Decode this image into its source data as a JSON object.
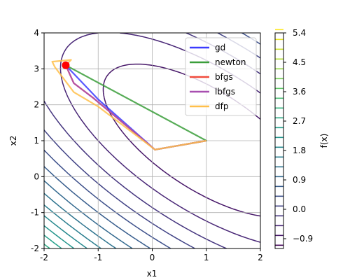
{
  "chart_data": {
    "type": "line",
    "title": "",
    "xlabel": "x1",
    "ylabel": "x2",
    "xlim": [
      -2,
      2
    ],
    "ylim": [
      -2,
      4
    ],
    "x_ticks": [
      "-2",
      "-1",
      "0",
      "1",
      "2"
    ],
    "y_ticks": [
      "-2",
      "-1",
      "0",
      "1",
      "2",
      "3",
      "4"
    ],
    "grid": true,
    "legend_position": "top-right",
    "contour": {
      "quantity": "f(x)",
      "colormap": "viridis",
      "levels_from": -1.1,
      "level_step": 0.3,
      "level_count": 23,
      "colorbar_label": "f(x)",
      "colorbar_range": [
        -1.2,
        5.4
      ],
      "colorbar_ticks": [
        "−0.9",
        "0.0",
        "0.9",
        "1.8",
        "2.7",
        "3.6",
        "4.5",
        "5.4"
      ]
    },
    "start_point": {
      "x": -1.6,
      "y": 3.1,
      "color": "#ff0000"
    },
    "series": [
      {
        "name": "gd",
        "color": "#3b3bff",
        "points": [
          [
            -1.6,
            3.1
          ],
          [
            -1.0,
            2.15
          ],
          [
            0.05,
            0.75
          ],
          [
            1.0,
            1.0
          ]
        ]
      },
      {
        "name": "newton",
        "color": "#3a9e3a",
        "points": [
          [
            -1.6,
            3.1
          ],
          [
            1.0,
            1.0
          ],
          [
            0.05,
            0.75
          ],
          [
            1.0,
            1.0
          ]
        ]
      },
      {
        "name": "bfgs",
        "color": "#f14b3c",
        "points": [
          [
            -1.6,
            3.1
          ],
          [
            -1.45,
            2.6
          ],
          [
            -1.1,
            2.2
          ],
          [
            0.05,
            0.75
          ],
          [
            1.0,
            1.0
          ]
        ]
      },
      {
        "name": "lbfgs",
        "color": "#a84fb0",
        "points": [
          [
            -1.6,
            3.1
          ],
          [
            -1.45,
            2.6
          ],
          [
            -1.1,
            2.2
          ],
          [
            0.05,
            0.75
          ],
          [
            1.0,
            1.0
          ]
        ]
      },
      {
        "name": "dfp",
        "color": "#ffbf4a",
        "points": [
          [
            -1.6,
            3.1
          ],
          [
            -1.5,
            3.25
          ],
          [
            -1.85,
            3.2
          ],
          [
            -1.8,
            3.05
          ],
          [
            -1.45,
            2.35
          ],
          [
            -1.0,
            1.95
          ],
          [
            0.05,
            0.75
          ],
          [
            1.0,
            1.0
          ]
        ]
      }
    ]
  }
}
